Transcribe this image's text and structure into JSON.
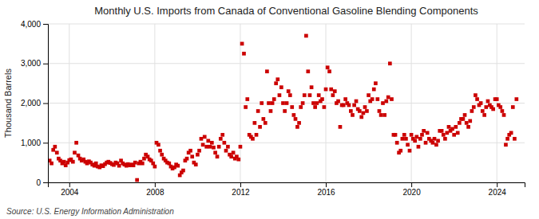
{
  "chart_data": {
    "type": "scatter",
    "title": "Monthly U.S. Imports from Canada of Conventional Gasoline Blending Components",
    "ylabel": "Thousand Barrels",
    "source": "Source: U.S. Energy Information Administration",
    "color": "#cc0000",
    "marker": "square",
    "grid": true,
    "xlim": [
      2003.0,
      2025.3
    ],
    "xticks": [
      2004,
      2008,
      2012,
      2016,
      2020,
      2024
    ],
    "ylim": [
      0,
      4000
    ],
    "yticks": [
      0,
      {
        "value": 1000,
        "label": "1,000"
      },
      {
        "value": 2000,
        "label": "2,000"
      },
      {
        "value": 3000,
        "label": "3,000"
      },
      {
        "value": 4000,
        "label": "4,000"
      }
    ],
    "x": [
      2003.08,
      2003.17,
      2003.25,
      2003.33,
      2003.42,
      2003.5,
      2003.58,
      2003.67,
      2003.75,
      2003.83,
      2003.92,
      2004.0,
      2004.08,
      2004.17,
      2004.25,
      2004.33,
      2004.42,
      2004.5,
      2004.58,
      2004.67,
      2004.75,
      2004.83,
      2004.92,
      2005.0,
      2005.08,
      2005.17,
      2005.25,
      2005.33,
      2005.42,
      2005.5,
      2005.58,
      2005.67,
      2005.75,
      2005.83,
      2005.92,
      2006.0,
      2006.08,
      2006.17,
      2006.25,
      2006.33,
      2006.42,
      2006.5,
      2006.58,
      2006.67,
      2006.75,
      2006.83,
      2006.92,
      2007.0,
      2007.08,
      2007.17,
      2007.25,
      2007.33,
      2007.42,
      2007.5,
      2007.58,
      2007.67,
      2007.75,
      2007.83,
      2007.92,
      2008.0,
      2008.08,
      2008.17,
      2008.25,
      2008.33,
      2008.42,
      2008.5,
      2008.58,
      2008.67,
      2008.75,
      2008.83,
      2008.92,
      2009.0,
      2009.08,
      2009.17,
      2009.25,
      2009.33,
      2009.42,
      2009.5,
      2009.58,
      2009.67,
      2009.75,
      2009.83,
      2009.92,
      2010.0,
      2010.08,
      2010.17,
      2010.25,
      2010.33,
      2010.42,
      2010.5,
      2010.58,
      2010.67,
      2010.75,
      2010.83,
      2010.92,
      2011.0,
      2011.08,
      2011.17,
      2011.25,
      2011.33,
      2011.42,
      2011.5,
      2011.58,
      2011.67,
      2011.75,
      2011.83,
      2011.92,
      2012.0,
      2012.08,
      2012.17,
      2012.25,
      2012.33,
      2012.42,
      2012.5,
      2012.58,
      2012.67,
      2012.75,
      2012.83,
      2012.92,
      2013.0,
      2013.08,
      2013.17,
      2013.25,
      2013.33,
      2013.42,
      2013.5,
      2013.58,
      2013.67,
      2013.75,
      2013.83,
      2013.92,
      2014.0,
      2014.08,
      2014.17,
      2014.25,
      2014.33,
      2014.42,
      2014.5,
      2014.58,
      2014.67,
      2014.75,
      2014.83,
      2014.92,
      2015.0,
      2015.08,
      2015.17,
      2015.25,
      2015.33,
      2015.42,
      2015.5,
      2015.58,
      2015.67,
      2015.75,
      2015.83,
      2015.92,
      2016.0,
      2016.08,
      2016.17,
      2016.25,
      2016.33,
      2016.42,
      2016.5,
      2016.58,
      2016.67,
      2016.75,
      2016.83,
      2016.92,
      2017.0,
      2017.08,
      2017.17,
      2017.25,
      2017.33,
      2017.42,
      2017.5,
      2017.58,
      2017.67,
      2017.75,
      2017.83,
      2017.92,
      2018.0,
      2018.08,
      2018.17,
      2018.25,
      2018.33,
      2018.42,
      2018.5,
      2018.58,
      2018.67,
      2018.75,
      2018.83,
      2018.92,
      2019.0,
      2019.08,
      2019.17,
      2019.25,
      2019.33,
      2019.42,
      2019.5,
      2019.58,
      2019.67,
      2019.75,
      2019.83,
      2019.92,
      2020.0,
      2020.08,
      2020.17,
      2020.25,
      2020.33,
      2020.42,
      2020.5,
      2020.58,
      2020.67,
      2020.75,
      2020.83,
      2020.92,
      2021.0,
      2021.08,
      2021.17,
      2021.25,
      2021.33,
      2021.42,
      2021.5,
      2021.58,
      2021.67,
      2021.75,
      2021.83,
      2021.92,
      2022.0,
      2022.08,
      2022.17,
      2022.25,
      2022.33,
      2022.42,
      2022.5,
      2022.58,
      2022.67,
      2022.75,
      2022.83,
      2022.92,
      2023.0,
      2023.08,
      2023.17,
      2023.25,
      2023.33,
      2023.42,
      2023.5,
      2023.58,
      2023.67,
      2023.75,
      2023.83,
      2023.92,
      2024.0,
      2024.08,
      2024.17,
      2024.25,
      2024.33,
      2024.42,
      2024.5,
      2024.58,
      2024.67,
      2024.75,
      2024.83,
      2024.92
    ],
    "values": [
      550,
      480,
      820,
      900,
      750,
      600,
      550,
      480,
      520,
      430,
      500,
      560,
      580,
      520,
      750,
      1000,
      680,
      600,
      550,
      580,
      520,
      480,
      530,
      500,
      450,
      420,
      480,
      400,
      380,
      430,
      410,
      460,
      500,
      520,
      490,
      460,
      440,
      500,
      480,
      420,
      550,
      480,
      450,
      420,
      460,
      430,
      450,
      430,
      500,
      60,
      480,
      520,
      480,
      600,
      700,
      650,
      580,
      550,
      480,
      400,
      1000,
      950,
      800,
      700,
      600,
      550,
      500,
      480,
      400,
      350,
      380,
      450,
      420,
      180,
      250,
      300,
      550,
      600,
      750,
      800,
      650,
      500,
      450,
      700,
      800,
      1100,
      950,
      1150,
      900,
      1050,
      900,
      1000,
      880,
      750,
      650,
      900,
      1100,
      1200,
      1000,
      800,
      900,
      700,
      650,
      750,
      600,
      650,
      580,
      900,
      3500,
      3250,
      1900,
      2100,
      1200,
      1150,
      1100,
      1500,
      1200,
      1800,
      1400,
      2000,
      1600,
      1500,
      2800,
      2000,
      1800,
      2000,
      2100,
      2500,
      2600,
      2200,
      2400,
      2000,
      1800,
      2000,
      2300,
      2200,
      1900,
      1700,
      1600,
      1400,
      1500,
      1900,
      2000,
      2200,
      3700,
      2800,
      2200,
      2400,
      2000,
      1900,
      2000,
      2200,
      2050,
      2100,
      1900,
      2350,
      2900,
      2800,
      2350,
      2200,
      2300,
      2000,
      2050,
      1400,
      1950,
      1950,
      2100,
      2000,
      1950,
      1800,
      1700,
      1950,
      2050,
      1850,
      1800,
      1650,
      1750,
      1900,
      1800,
      2200,
      2050,
      2100,
      2350,
      2500,
      2100,
      1800,
      1700,
      2000,
      1700,
      2050,
      2150,
      3000,
      2100,
      1200,
      1200,
      1000,
      750,
      800,
      1100,
      1200,
      1100,
      950,
      800,
      1200,
      1100,
      1050,
      1150,
      900,
      1100,
      1200,
      1300,
      1000,
      1250,
      1100,
      1050,
      1000,
      1100,
      950,
      1050,
      1300,
      1300,
      1200,
      1100,
      1250,
      1400,
      1300,
      1350,
      1200,
      1400,
      1250,
      1500,
      1600,
      1600,
      1700,
      1500,
      1400,
      1550,
      1800,
      1900,
      2200,
      2100,
      1950,
      2000,
      1800,
      1700,
      1900,
      2050,
      1950,
      1900,
      1850,
      2100,
      2100,
      1950,
      1900,
      1800,
      1700,
      950,
      1100,
      1200,
      1250,
      1900,
      1100,
      2100
    ]
  }
}
